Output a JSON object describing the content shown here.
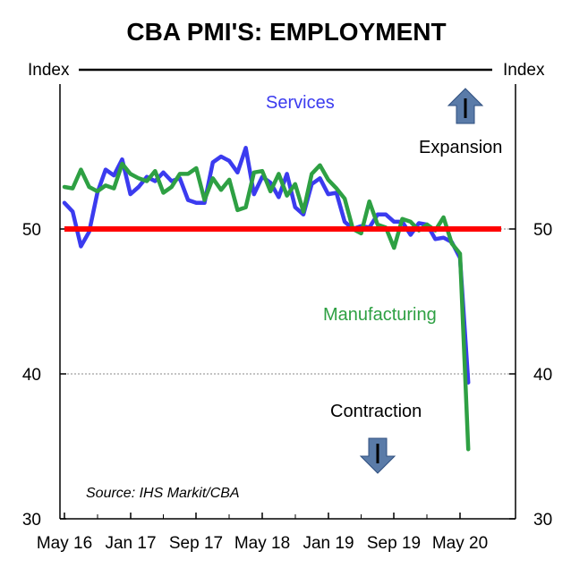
{
  "chart_data": {
    "type": "line",
    "title": "CBA PMI'S: EMPLOYMENT",
    "ylabel_left": "Index",
    "ylabel_right": "Index",
    "ylim": [
      30,
      60
    ],
    "y_ticks": [
      30,
      40,
      50
    ],
    "x_tick_labels": [
      "May 16",
      "Jan 17",
      "Sep 17",
      "May 18",
      "Jan 19",
      "Sep 19",
      "May 20"
    ],
    "x_start": "May 16",
    "x_end": "May 20",
    "reference_line": {
      "value": 50,
      "color": "#ff0000"
    },
    "grid_lines": [
      40,
      50
    ],
    "series": [
      {
        "name": "Services",
        "color": "#3b3bef",
        "values": [
          51.8,
          51.2,
          48.8,
          49.8,
          52.5,
          54.1,
          53.7,
          54.8,
          52.4,
          52.9,
          53.6,
          53.3,
          53.9,
          53.3,
          53.5,
          52.0,
          51.8,
          51.8,
          54.6,
          55.0,
          54.7,
          53.9,
          55.6,
          52.4,
          53.6,
          53.2,
          52.2,
          53.8,
          51.5,
          51.0,
          53.1,
          53.5,
          52.4,
          52.5,
          50.5,
          50.0,
          50.2,
          50.1,
          51.0,
          51.0,
          50.5,
          50.5,
          49.6,
          50.4,
          50.3,
          49.3,
          49.4,
          49.1,
          48.0,
          39.4
        ],
        "labels": []
      },
      {
        "name": "Manufacturing",
        "color": "#2ea043",
        "values": [
          52.9,
          52.8,
          54.1,
          52.9,
          52.6,
          53.0,
          52.8,
          54.5,
          53.8,
          53.5,
          53.3,
          54.0,
          52.5,
          52.9,
          53.8,
          53.8,
          54.2,
          52.0,
          53.5,
          52.7,
          53.4,
          51.3,
          51.5,
          53.9,
          54.0,
          52.6,
          53.8,
          52.3,
          53.1,
          51.2,
          53.8,
          54.4,
          53.4,
          52.8,
          52.1,
          50.0,
          49.7,
          51.9,
          50.3,
          50.1,
          48.7,
          50.7,
          50.5,
          49.9,
          50.3,
          49.9,
          50.8,
          49.0,
          48.3,
          34.8
        ]
      }
    ],
    "annotations": {
      "services_label": "Services",
      "manufacturing_label": "Manufacturing",
      "expansion": "Expansion",
      "contraction": "Contraction",
      "source": "Source: IHS Markit/CBA"
    }
  }
}
